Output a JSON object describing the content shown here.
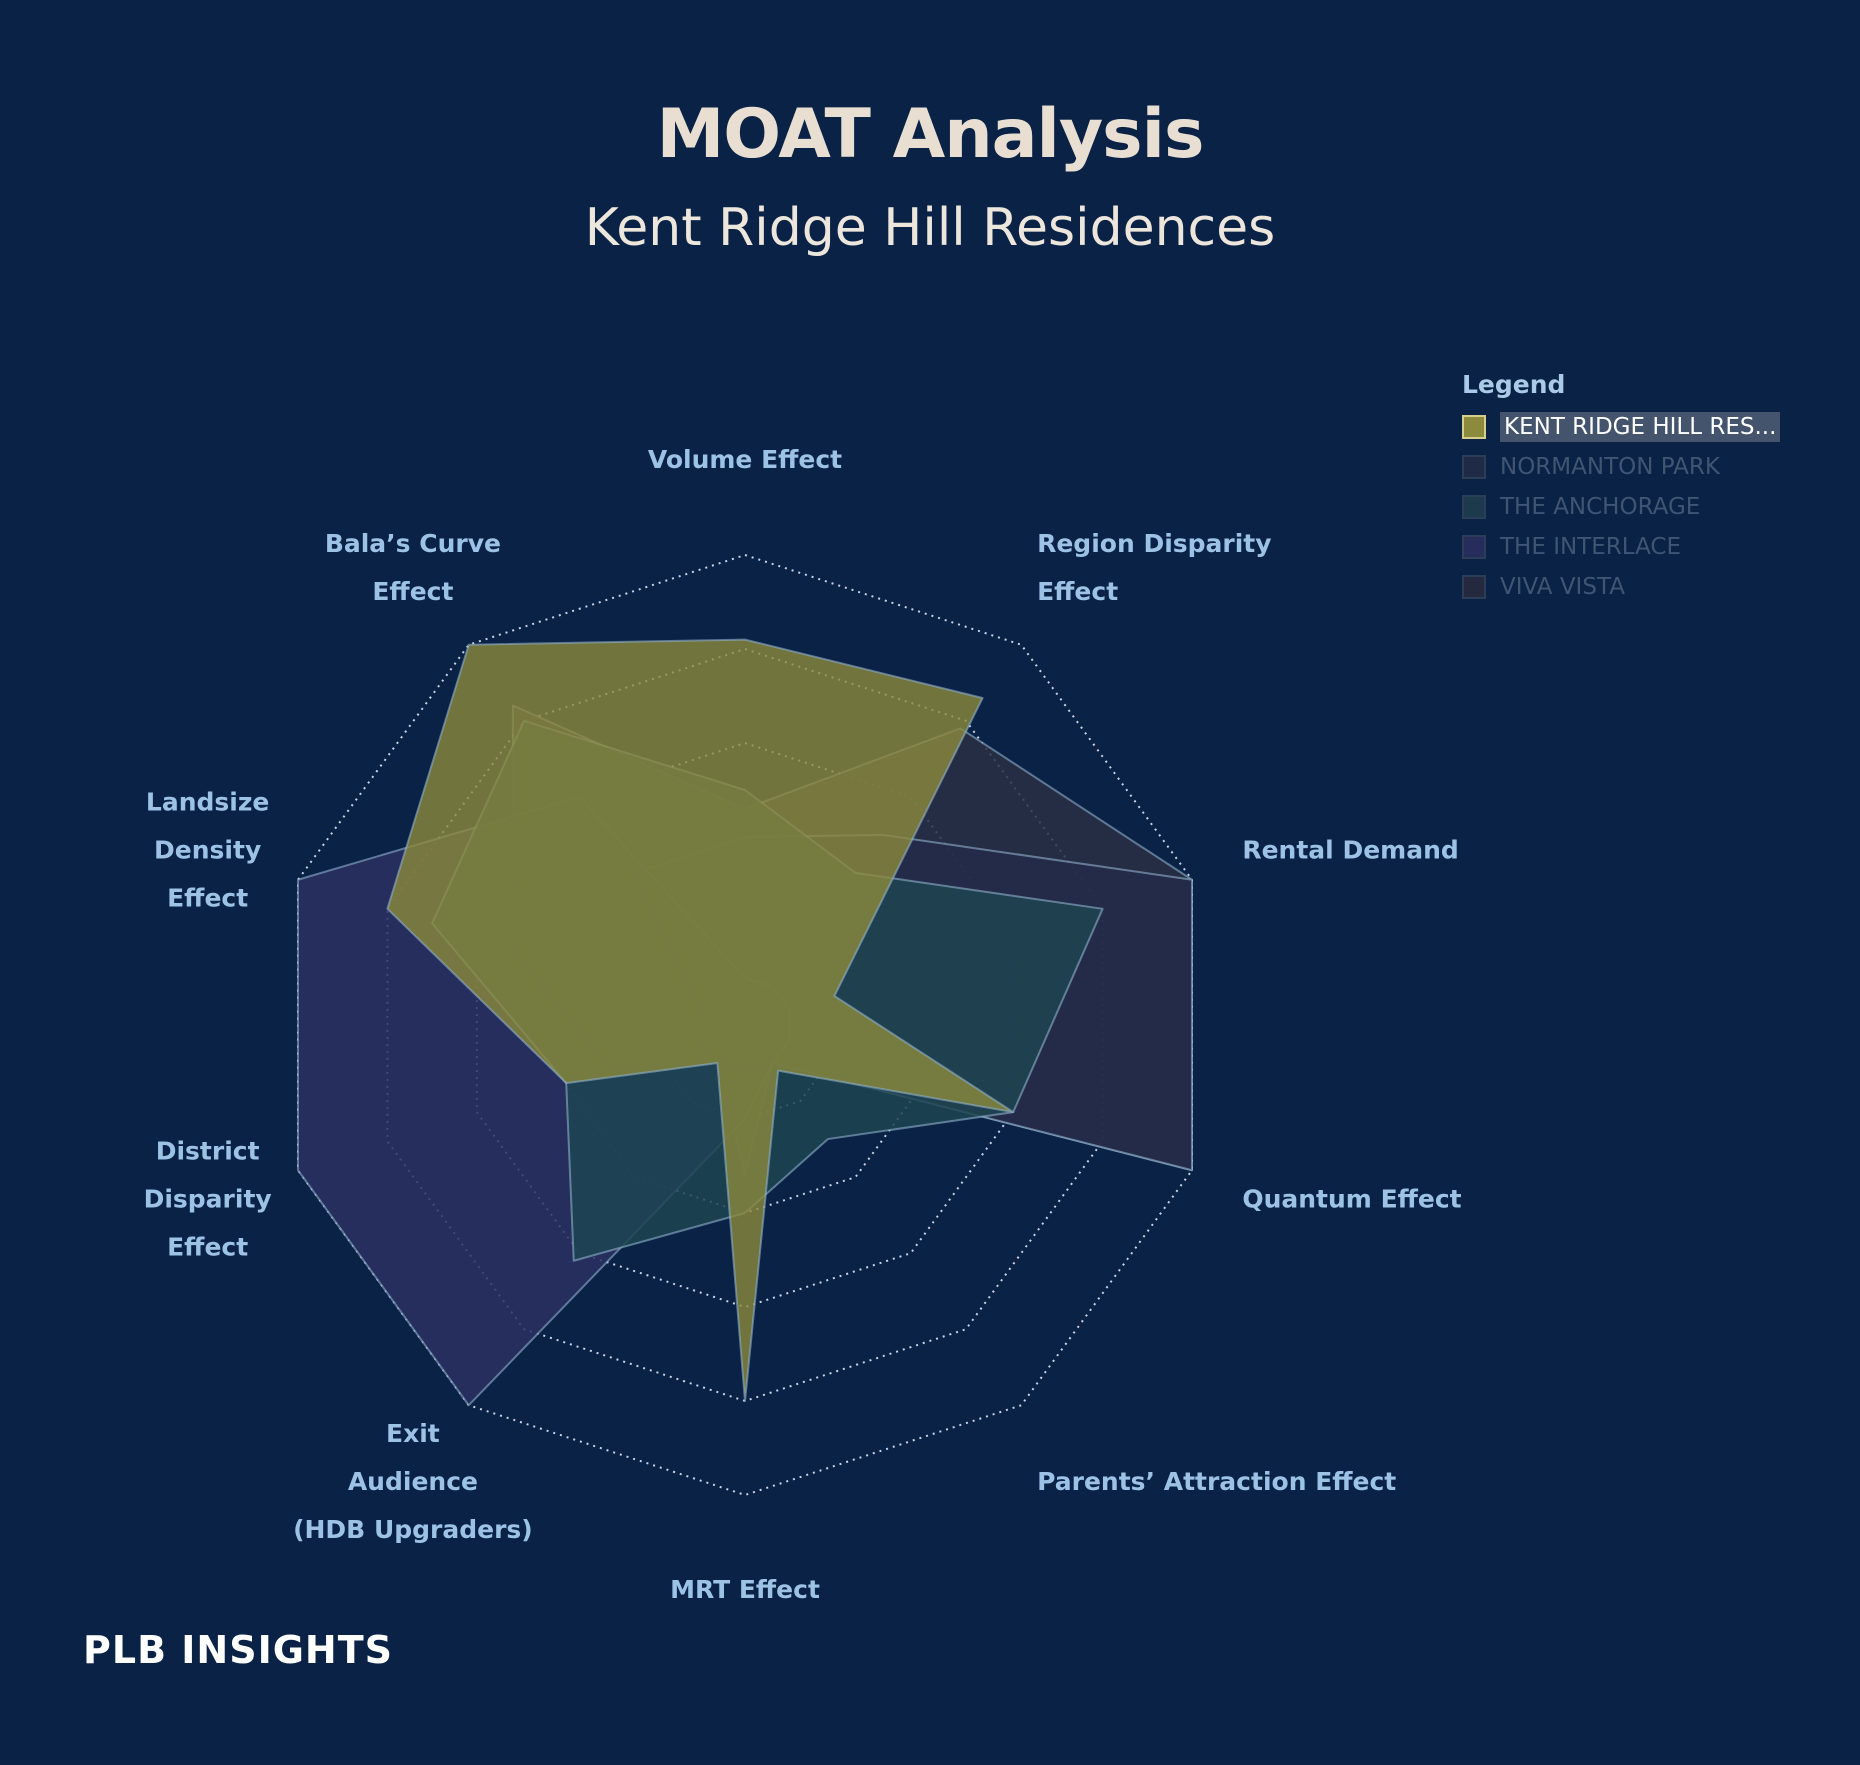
{
  "title": "MOAT Analysis",
  "subtitle": "Kent Ridge Hill Residences",
  "legend": {
    "title": "Legend",
    "items": [
      {
        "label": "KENT RIDGE HILL RES...",
        "color": "#8c8a3c",
        "active": true
      },
      {
        "label": "NORMANTON PARK",
        "color": "#1e2a46",
        "active": false
      },
      {
        "label": "THE ANCHORAGE",
        "color": "#1c3a4c",
        "active": false
      },
      {
        "label": "THE INTERLACE",
        "color": "#262d5c",
        "active": false
      },
      {
        "label": "VIVA VISTA",
        "color": "#24293d",
        "active": false
      }
    ]
  },
  "brand": "PLB INSIGHTS",
  "chart_data": {
    "type": "radar",
    "axes": [
      [
        "Volume Effect"
      ],
      [
        "Region Disparity",
        "Effect"
      ],
      [
        "Rental Demand"
      ],
      [
        "Quantum Effect"
      ],
      [
        "Parents’ Attraction Effect"
      ],
      [
        "MRT Effect"
      ],
      [
        "Exit",
        "Audience",
        "(HDB Upgraders)"
      ],
      [
        "District",
        "Disparity",
        "Effect"
      ],
      [
        "Landsize",
        "Density",
        "Effect"
      ],
      [
        "Bala’s Curve",
        "Effect"
      ]
    ],
    "rings": 5,
    "max": 5,
    "grid": "dotted",
    "series": [
      {
        "name": "VIVA VISTA",
        "color": "#2a2f45",
        "opacity": 0.85,
        "values": [
          2.3,
          3.9,
          5.0,
          5.0,
          0.5,
          1.6,
          0.5,
          1.5,
          2.6,
          4.2
        ]
      },
      {
        "name": "NORMANTON PARK",
        "color": "#252c49",
        "opacity": 0.85,
        "values": [
          2.0,
          2.5,
          5.0,
          5.0,
          0.5,
          0.5,
          0.5,
          0.5,
          0.5,
          2.0
        ]
      },
      {
        "name": "THE INTERLACE",
        "color": "#2a3060",
        "opacity": 0.85,
        "values": [
          0.5,
          0.5,
          0.5,
          0.5,
          0.5,
          1.0,
          5.0,
          5.0,
          5.0,
          3.0
        ]
      },
      {
        "name": "THE ANCHORAGE",
        "color": "#1d4451",
        "opacity": 0.85,
        "values": [
          2.5,
          2.0,
          4.0,
          3.0,
          1.5,
          2.0,
          3.1,
          2.0,
          3.5,
          4.0
        ]
      },
      {
        "name": "KENT RIDGE HILL RES...",
        "color": "#8c8a3c",
        "opacity": 0.8,
        "values": [
          4.1,
          4.3,
          1.0,
          3.0,
          0.6,
          4.0,
          0.5,
          2.0,
          4.0,
          5.0
        ]
      }
    ]
  }
}
